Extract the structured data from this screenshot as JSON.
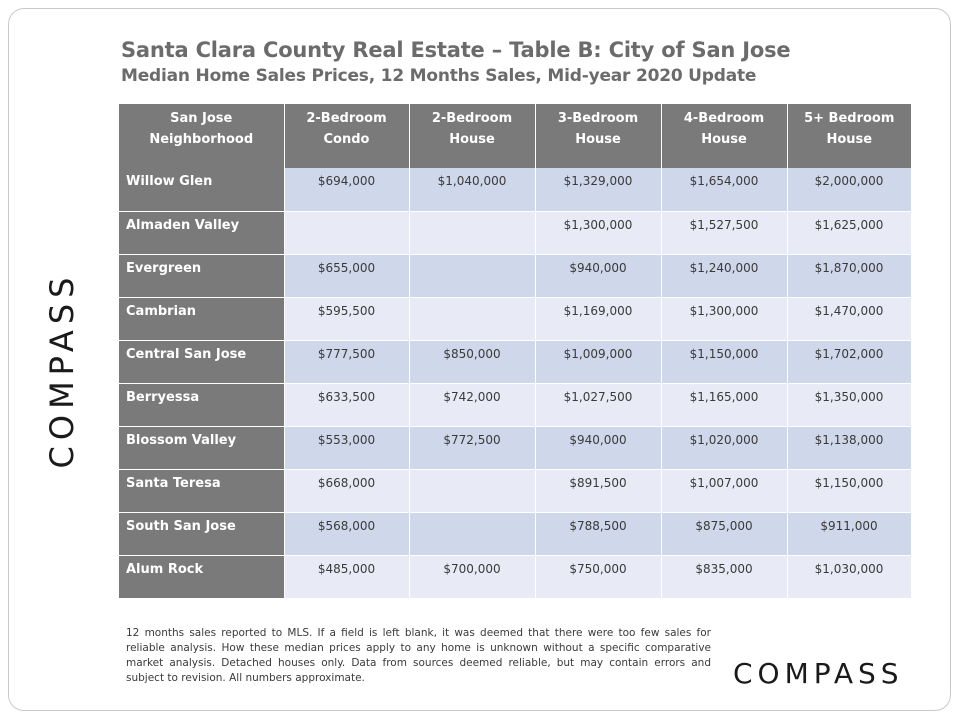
{
  "title": "Santa Clara County Real Estate – Table B: City of San Jose",
  "subtitle": "Median Home Sales Prices, 12 Months Sales, Mid-year 2020 Update",
  "brand": "COMPASS",
  "table": {
    "headers": [
      [
        "San Jose",
        "Neighborhood"
      ],
      [
        "2-Bedroom",
        "Condo"
      ],
      [
        "2-Bedroom",
        "House"
      ],
      [
        "3-Bedroom",
        "House"
      ],
      [
        "4-Bedroom",
        "House"
      ],
      [
        "5+ Bedroom",
        "House"
      ]
    ],
    "rows": [
      [
        "Willow Glen",
        "$694,000",
        "$1,040,000",
        "$1,329,000",
        "$1,654,000",
        "$2,000,000"
      ],
      [
        "Almaden Valley",
        "",
        "",
        "$1,300,000",
        "$1,527,500",
        "$1,625,000"
      ],
      [
        "Evergreen",
        "$655,000",
        "",
        "$940,000",
        "$1,240,000",
        "$1,870,000"
      ],
      [
        "Cambrian",
        "$595,500",
        "",
        "$1,169,000",
        "$1,300,000",
        "$1,470,000"
      ],
      [
        "Central San Jose",
        "$777,500",
        "$850,000",
        "$1,009,000",
        "$1,150,000",
        "$1,702,000"
      ],
      [
        "Berryessa",
        "$633,500",
        "$742,000",
        "$1,027,500",
        "$1,165,000",
        "$1,350,000"
      ],
      [
        "Blossom Valley",
        "$553,000",
        "$772,500",
        "$940,000",
        "$1,020,000",
        "$1,138,000"
      ],
      [
        "Santa Teresa",
        "$668,000",
        "",
        "$891,500",
        "$1,007,000",
        "$1,150,000"
      ],
      [
        "South San Jose",
        "$568,000",
        "",
        "$788,500",
        "$875,000",
        "$911,000"
      ],
      [
        "Alum Rock",
        "$485,000",
        "$700,000",
        "$750,000",
        "$835,000",
        "$1,030,000"
      ]
    ]
  },
  "footnote": "12 months sales reported to MLS. If a field is left blank, it was deemed that there were too few sales for reliable analysis. How these median prices apply to any home is unknown without a specific comparative market analysis. Detached houses only. Data from sources deemed reliable, but may contain errors and subject to revision. All numbers approximate.",
  "colors": {
    "header_bg": "#7a7a7a",
    "row_band_dark": "#cfd7ea",
    "row_band_light": "#e8ebf6",
    "title_text": "#6b6b6b"
  }
}
